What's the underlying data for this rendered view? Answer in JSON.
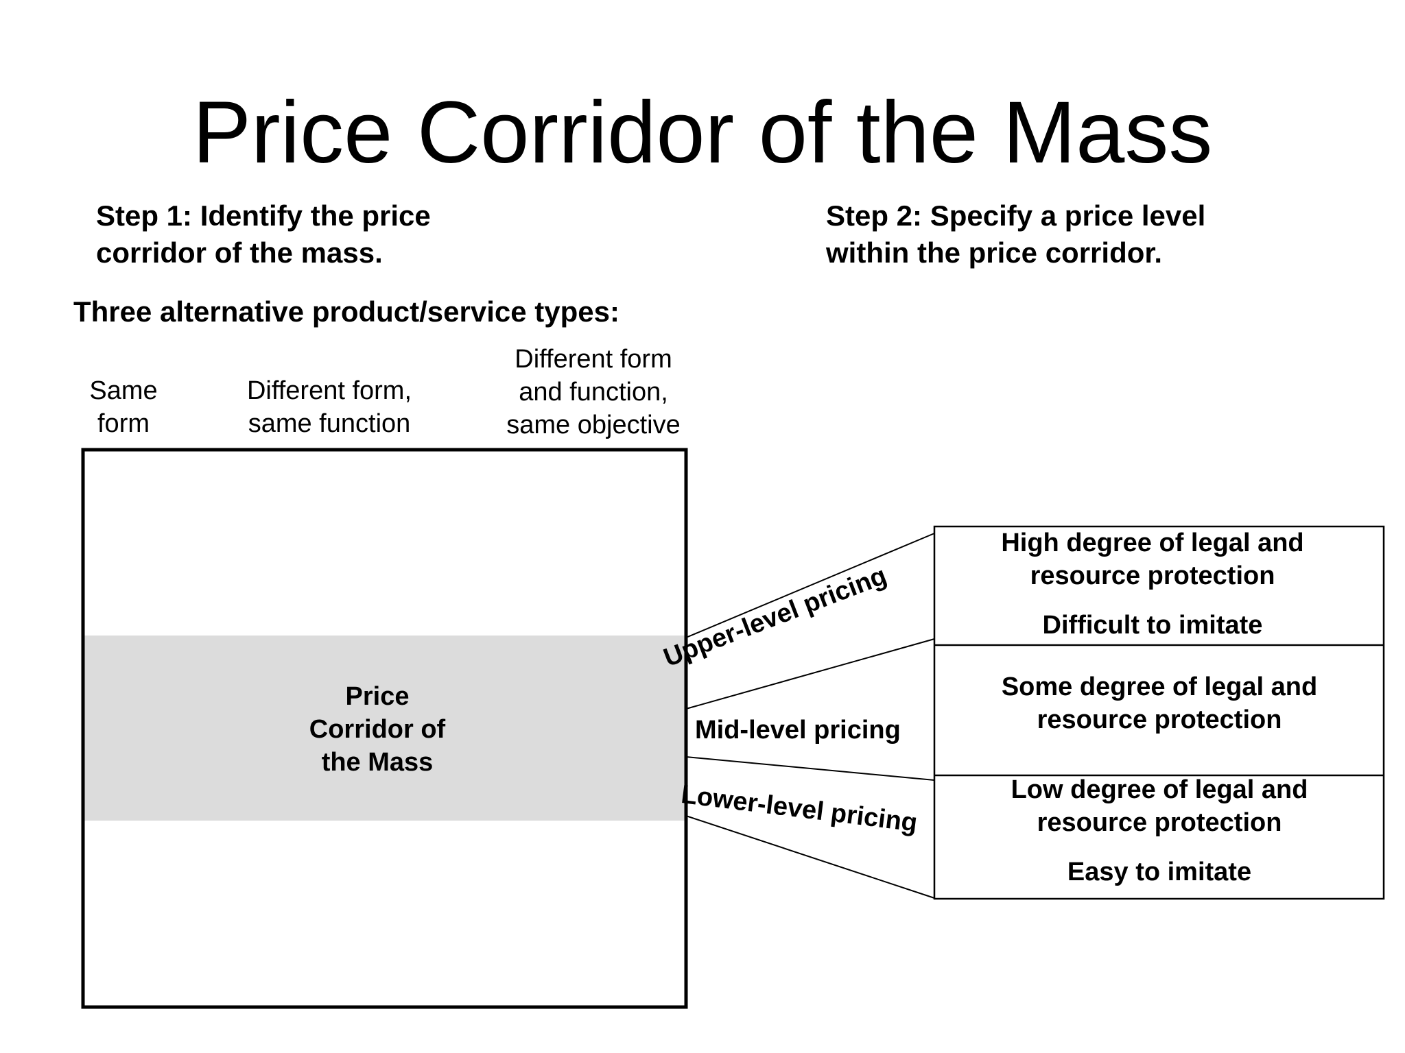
{
  "title": "Price Corridor of the Mass",
  "step1": {
    "line1": "Step 1: Identify the price",
    "line2": "corridor of the mass."
  },
  "step2": {
    "line1": "Step 2: Specify a price level",
    "line2": "within the price corridor."
  },
  "alternatives_heading": "Three alternative product/service types:",
  "columns": [
    {
      "lines": [
        "Same",
        "form"
      ]
    },
    {
      "lines": [
        "Different form,",
        "same function"
      ]
    },
    {
      "lines": [
        "Different form",
        "and function,",
        "same objective"
      ]
    }
  ],
  "corridor": {
    "lines": [
      "Price",
      "Corridor of",
      "the Mass"
    ],
    "fill": "#dcdcdc"
  },
  "pricing_levels": {
    "upper": "Upper-level pricing",
    "mid": "Mid-level pricing",
    "lower": "Lower-level pricing"
  },
  "protection": {
    "high": {
      "line1": "High degree of legal and",
      "line2": "resource protection",
      "note": "Difficult to imitate"
    },
    "some": {
      "line1": "Some degree of legal and",
      "line2": "resource protection"
    },
    "low": {
      "line1": "Low degree of legal and",
      "line2": "resource protection",
      "note": "Easy to imitate"
    }
  }
}
